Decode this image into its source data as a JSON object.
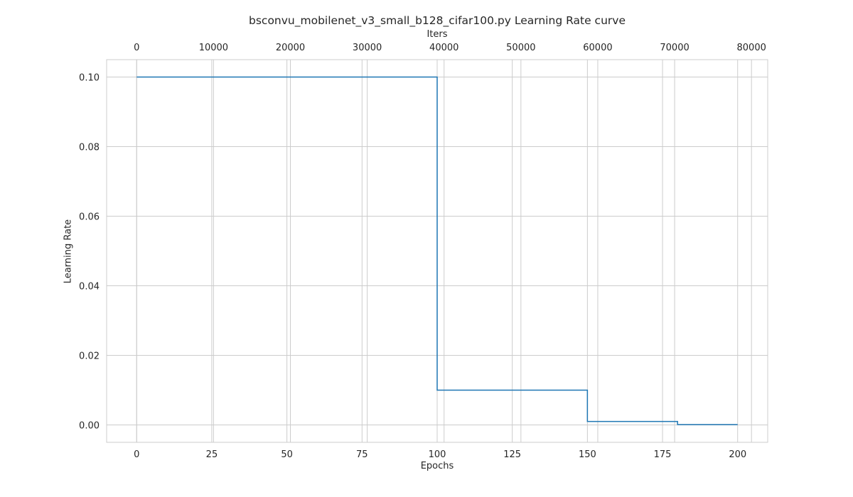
{
  "chart_data": {
    "type": "line",
    "title": "bsconvu_mobilenet_v3_small_b128_cifar100.py Learning Rate curve",
    "xlabel": "Epochs",
    "ylabel": "Learning Rate",
    "x2label": "Iters",
    "xlim": [
      -10,
      210
    ],
    "ylim": [
      -0.005,
      0.105
    ],
    "x2_per_epoch": 391,
    "xticks": [
      0,
      25,
      50,
      75,
      100,
      125,
      150,
      175,
      200
    ],
    "x2ticks": [
      0,
      10000,
      20000,
      30000,
      40000,
      50000,
      60000,
      70000,
      80000
    ],
    "yticks": [
      0.0,
      0.02,
      0.04,
      0.06,
      0.08,
      0.1
    ],
    "ytick_labels": [
      "0.00",
      "0.02",
      "0.04",
      "0.06",
      "0.08",
      "0.10"
    ],
    "grid": true,
    "series": [
      {
        "color": "#1f77b4",
        "step": "post",
        "x": [
          0,
          100,
          150,
          180,
          200
        ],
        "y": [
          0.1,
          0.01,
          0.001,
          0.0001,
          0.0001
        ]
      }
    ]
  }
}
